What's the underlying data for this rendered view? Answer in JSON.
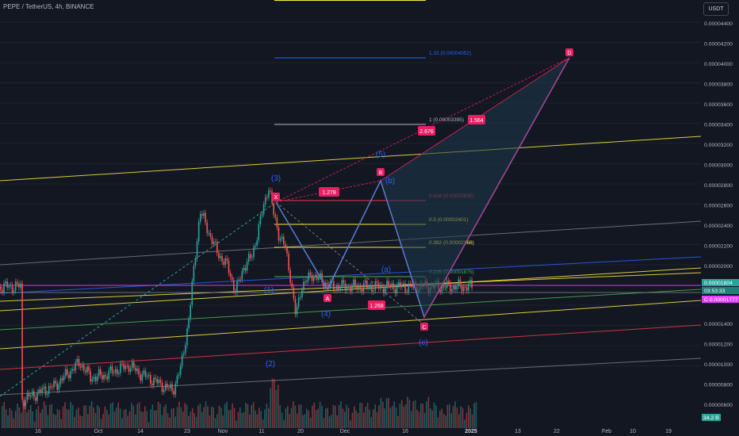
{
  "header": {
    "symbol": "PEPE / TetherUS, 4h, BINANCE",
    "currency": "USDT"
  },
  "chart_data": {
    "type": "candlestick",
    "y_axis": {
      "range": [
        5e-06,
        4.5e-06
      ],
      "ticks": [
        "0.00004400",
        "0.00004200",
        "0.00004000",
        "0.00003800",
        "0.00003600",
        "0.00003400",
        "0.00003200",
        "0.00003000",
        "0.00002800",
        "0.00002600",
        "0.00002400",
        "0.00002200",
        "0.00002000",
        "0.00001400",
        "0.00001200",
        "0.00001000",
        "0.00000800",
        "0.00000600"
      ]
    },
    "x_axis": {
      "ticks": [
        "16",
        "Oct",
        "14",
        "23",
        "Nov",
        "11",
        "20",
        "Dec",
        "16",
        "2025",
        "13",
        "22",
        "Feb",
        "10",
        "19"
      ]
    },
    "price_labels": {
      "last": "0.00001804",
      "countdown": "03:53:33",
      "c_label": "C 0.00001777",
      "volume": "34.2 B"
    },
    "price_series": [
      [
        "Sep 10",
        6.8e-06
      ],
      [
        "Sep 16",
        7.5e-06
      ],
      [
        "Sep 22",
        8.2e-06
      ],
      [
        "Sep 27",
        9.5e-06
      ],
      [
        "Oct 1",
        1.05e-05
      ],
      [
        "Oct 5",
        9e-06
      ],
      [
        "Oct 10",
        9.2e-06
      ],
      [
        "Oct 14",
        9.7e-06
      ],
      [
        "Oct 19",
        1.02e-05
      ],
      [
        "Oct 23",
        9.4e-06
      ],
      [
        "Oct 28",
        8.7e-06
      ],
      [
        "Nov 1",
        8.1e-06
      ],
      [
        "Nov 4",
        7.7e-06
      ],
      [
        "Nov 7",
        1e-05
      ],
      [
        "Nov 10",
        1.5e-05
      ],
      [
        "Nov 12",
        2.05e-05
      ],
      [
        "Nov 14",
        2.55e-05
      ],
      [
        "Nov 17",
        2.35e-05
      ],
      [
        "Nov 20",
        2.15e-05
      ],
      [
        "Nov 24",
        2e-05
      ],
      [
        "Nov 27",
        1.75e-05
      ],
      [
        "Nov 30",
        2e-05
      ],
      [
        "Dec 3",
        2.1e-05
      ],
      [
        "Dec 6",
        2.45e-05
      ],
      [
        "Dec 9",
        2.8e-05
      ],
      [
        "Dec 11",
        2.5e-05
      ],
      [
        "Dec 13",
        2.3e-05
      ],
      [
        "Dec 15",
        2.2e-05
      ],
      [
        "Dec 17",
        1.9e-05
      ],
      [
        "Dec 19",
        1.5e-05
      ],
      [
        "Dec 21",
        1.8e-05
      ],
      [
        "Dec 25",
        1.92e-05
      ],
      [
        "Dec 29",
        1.85e-05
      ],
      [
        "Jan 1",
        1.8e-05
      ]
    ],
    "fib_levels": [
      {
        "label": "1.33 (0.00004052)",
        "value": 4.052e-05,
        "color": "#2962ff"
      },
      {
        "label": "1 (0.00003395)",
        "value": 3.395e-05,
        "color": "#b2b5be"
      },
      {
        "label": "0.618 (0.00002635)",
        "value": 2.635e-05,
        "color": "#f23645"
      },
      {
        "label": "0.5 (0.00002401)",
        "value": 2.401e-05,
        "color": "#ffeb3b"
      },
      {
        "label": "0.382 (0.00002166)",
        "value": 2.166e-05,
        "color": "#ffeb3b"
      },
      {
        "label": "0.236 (0.00001875)",
        "value": 1.875e-05,
        "color": "#4caf50"
      }
    ],
    "harmonic_points": [
      "X",
      "A",
      "B",
      "C",
      "D"
    ],
    "harmonic_ratios": [
      "1.278",
      "1.268",
      "2.676",
      "1.564"
    ],
    "wave_labels": [
      "(1)",
      "(2)",
      "(3)",
      "(4)",
      "(5)",
      "(a)",
      "(b)",
      "(c)"
    ],
    "colors": {
      "background": "#131722",
      "up": "#26a69a",
      "down": "#ef5350",
      "pattern": "#e91e63",
      "wave": "#2962ff",
      "fill": "#1e3a4c"
    }
  }
}
